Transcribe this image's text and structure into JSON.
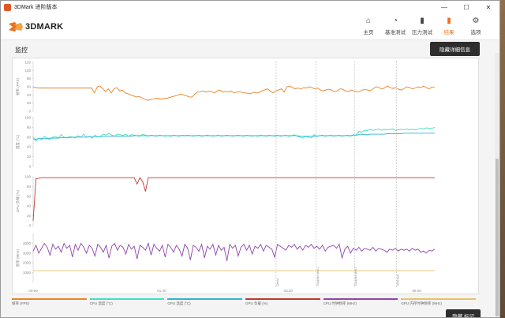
{
  "window": {
    "title": "3DMark 进阶版本",
    "controls": {
      "minimize": "—",
      "maximize": "☐",
      "close": "✕"
    }
  },
  "app": {
    "logo_text": "3DMARK"
  },
  "nav": [
    {
      "label": "主页",
      "icon": "home-icon",
      "glyph": "⌂"
    },
    {
      "label": "基准测试",
      "icon": "gauge-icon",
      "glyph": "◔"
    },
    {
      "label": "压力测试",
      "icon": "bar-chart-icon",
      "glyph": "▮"
    },
    {
      "label": "结果",
      "icon": "results-icon",
      "glyph": "▮",
      "active": true
    },
    {
      "label": "选项",
      "icon": "gear-icon",
      "glyph": "⚙"
    }
  ],
  "section": {
    "title": "监控",
    "detail_button": "隐藏详细信息"
  },
  "hide_button": "隐藏 标记",
  "colors": {
    "fps": "#e8822a",
    "cpu_temp": "#3fe0c0",
    "gpu_temp": "#2bb5d6",
    "gpu_load": "#c0392b",
    "cpu_clock": "#8e44ad",
    "gpu_mem_clock": "#e6c167",
    "accent": "#e8711f"
  },
  "chart_data": {
    "type": "line",
    "x_ticks": [
      "00:00",
      "01:40",
      "03:20",
      "05:00"
    ],
    "markers": [
      "",
      "Demo",
      "Graphics test 1",
      "Graphics test 2",
      "CPU test"
    ],
    "panels": [
      {
        "ylabel": "帧率 (FPS)",
        "ylim": [
          0,
          120
        ],
        "ticks": [
          "120",
          "100",
          "80",
          "60",
          "40",
          "20",
          "0"
        ],
        "series": [
          {
            "color_key": "fps",
            "values": [
              60,
              58,
              57,
              57,
              57,
              57,
              57,
              57,
              57,
              57,
              57,
              57,
              57,
              57,
              57,
              57,
              57,
              57,
              57,
              57,
              57,
              57,
              45,
              60,
              62,
              55,
              48,
              55,
              45,
              55,
              58,
              50,
              52,
              45,
              43,
              40,
              38,
              35,
              36,
              33,
              30,
              27,
              28,
              30,
              32,
              31,
              30,
              31,
              32,
              34,
              36,
              38,
              40,
              42,
              40,
              38,
              35,
              35,
              42,
              47,
              48,
              50,
              47,
              50,
              48,
              45,
              50,
              52,
              47,
              49,
              47,
              50,
              45,
              47,
              48,
              46,
              45,
              44,
              43,
              47,
              45,
              46,
              50,
              52,
              55,
              50,
              45,
              50,
              52,
              55,
              47,
              60,
              62,
              58,
              55,
              57,
              54,
              58,
              57,
              60,
              58,
              55,
              57,
              52,
              50,
              52,
              54,
              52,
              48,
              50,
              55,
              54,
              50,
              48,
              52,
              50,
              48,
              48,
              52,
              53,
              52,
              50,
              56,
              60,
              58,
              55,
              57,
              62,
              58,
              56,
              58,
              54,
              52,
              56,
              60,
              58,
              55,
              57,
              60,
              58,
              62,
              58,
              55,
              60,
              58
            ]
          }
        ]
      },
      {
        "ylabel": "温度 (°C)",
        "ylim": [
          0,
          100
        ],
        "ticks": [
          "100",
          "80",
          "60",
          "40",
          "20",
          "0"
        ],
        "series": [
          {
            "color_key": "cpu_temp",
            "values": [
              60,
              52,
              58,
              55,
              62,
              58,
              55,
              60,
              62,
              58,
              65,
              60,
              58,
              62,
              60,
              58,
              63,
              60,
              66,
              60,
              62,
              58,
              64,
              60,
              62,
              66,
              64,
              68,
              64,
              62,
              66,
              65,
              63,
              66,
              62,
              65,
              64,
              63,
              62,
              66,
              64,
              62,
              64,
              63,
              62,
              64,
              63,
              62,
              63,
              62,
              64,
              63,
              62,
              64,
              63,
              64,
              63,
              62,
              63,
              64,
              62,
              63,
              64,
              63,
              62,
              63,
              64,
              62,
              63,
              64,
              63,
              62,
              63,
              64,
              63,
              62,
              64,
              63,
              62,
              63,
              62,
              64,
              63,
              62,
              64,
              63,
              62,
              64,
              62,
              63,
              64,
              62,
              63,
              65,
              62,
              60,
              58,
              62,
              60,
              58,
              65,
              62,
              63,
              64,
              62,
              63,
              64,
              62,
              63,
              64,
              62,
              63,
              64,
              62,
              65,
              64,
              72,
              70,
              74,
              73,
              76,
              74,
              75,
              77,
              74,
              76,
              75,
              76,
              77,
              74,
              75,
              76,
              75,
              77,
              75,
              76,
              75,
              76,
              78,
              77,
              79,
              78,
              78,
              80
            ]
          },
          {
            "color_key": "gpu_temp",
            "values": [
              56,
              56,
              57,
              57,
              57,
              57,
              58,
              58,
              58,
              58,
              59,
              59,
              59,
              59,
              60,
              60,
              60,
              60,
              60,
              60,
              61,
              61,
              61,
              61,
              61,
              61,
              62,
              62,
              62,
              62,
              62,
              62,
              62,
              62,
              62,
              62,
              63,
              63,
              63,
              63,
              63,
              63,
              63,
              63,
              63,
              63,
              63,
              63,
              63,
              63,
              63,
              63,
              63,
              63,
              63,
              63,
              63,
              63,
              63,
              63,
              63,
              63,
              63,
              63,
              63,
              63,
              63,
              63,
              63,
              63,
              63,
              63,
              63,
              63,
              63,
              63,
              63,
              63,
              63,
              63,
              63,
              63,
              63,
              63,
              63,
              63,
              63,
              63,
              63,
              63,
              63,
              63,
              63,
              63,
              63,
              62,
              62,
              62,
              62,
              62,
              62,
              62,
              63,
              63,
              63,
              63,
              63,
              63,
              63,
              63,
              63,
              63,
              63,
              63,
              64,
              64,
              65,
              65,
              65,
              65,
              66,
              66,
              66,
              66,
              66,
              66,
              67,
              67,
              67,
              67,
              67,
              67,
              68,
              68,
              68,
              68,
              68,
              68,
              68,
              68,
              68,
              68,
              68,
              68
            ]
          }
        ]
      },
      {
        "ylabel": "GPU 负载 (%)",
        "ylim": [
          0,
          100
        ],
        "ticks": [
          "100",
          "80",
          "60",
          "40",
          "20",
          "0"
        ],
        "series": [
          {
            "color_key": "gpu_load",
            "values": [
              10,
              96,
              97,
              98,
              98,
              98,
              98,
              98,
              98,
              98,
              98,
              98,
              98,
              98,
              98,
              98,
              98,
              98,
              98,
              98,
              98,
              98,
              98,
              98,
              98,
              98,
              98,
              98,
              98,
              98,
              98,
              98,
              98,
              98,
              98,
              98,
              98,
              85,
              98,
              90,
              70,
              98,
              98,
              98,
              98,
              98,
              98,
              98,
              98,
              98,
              98,
              98,
              98,
              98,
              98,
              98,
              98,
              98,
              98,
              98,
              98,
              98,
              98,
              98,
              98,
              98,
              98,
              98,
              98,
              98,
              98,
              98,
              98,
              98,
              98,
              98,
              98,
              98,
              98,
              98,
              98,
              98,
              98,
              98,
              98,
              98,
              98,
              98,
              98,
              98,
              98,
              98,
              98,
              98,
              98,
              98,
              98,
              98,
              98,
              98,
              98,
              98,
              98,
              98,
              98,
              98,
              98,
              98,
              98,
              98,
              98,
              98,
              98,
              98,
              98,
              98,
              98,
              98,
              98,
              98,
              98,
              98,
              98,
              98,
              98,
              98,
              98,
              98,
              98,
              98,
              98,
              98,
              98,
              98,
              98,
              98,
              98,
              98,
              98,
              98,
              98,
              98,
              98,
              98
            ]
          }
        ]
      },
      {
        "ylabel": "频率 (MHz)",
        "ylim": [
          0,
          5000
        ],
        "ticks": [
          "4000",
          "3000",
          "2000",
          "1000"
        ],
        "series": [
          {
            "color_key": "cpu_clock",
            "values": [
              3200,
              3800,
              3000,
              3500,
              4000,
              3600,
              2800,
              3900,
              3400,
              3700,
              3100,
              4000,
              3500,
              3800,
              2600,
              3900,
              3300,
              4000,
              3600,
              3000,
              3800,
              3500,
              2700,
              3900,
              3600,
              3100,
              3800,
              2500,
              3700,
              4000,
              3300,
              3800,
              3600,
              2900,
              3900,
              3400,
              3700,
              2400,
              3800,
              3600,
              3300,
              4000,
              2800,
              3900,
              3500,
              3200,
              3800,
              2600,
              3900,
              3600,
              3100,
              3800,
              3400,
              2700,
              3900,
              3500,
              2300,
              3800,
              3600,
              3200,
              3900,
              2500,
              3700,
              3400,
              3900,
              2800,
              3800,
              3300,
              3600,
              2200,
              3900,
              3500,
              3800,
              2700,
              3600,
              3900,
              3300,
              3800,
              2900,
              3700,
              3500,
              3900,
              3200,
              3800,
              3600,
              3400,
              2600,
              3900,
              3700,
              3500,
              3300,
              3800,
              3600,
              3900,
              3400,
              3700,
              3300,
              3800,
              3600,
              3900,
              3500,
              3700,
              3400,
              3800,
              3200,
              3600,
              3700,
              3800,
              3500,
              3900,
              2500,
              3400,
              3700,
              3000,
              3500,
              3300,
              3600,
              3200,
              3500,
              3400,
              3300,
              3600,
              3200,
              3500,
              3400,
              3300,
              3100,
              3400,
              3300,
              3500,
              3200,
              3400,
              3300,
              3400,
              3200,
              3500,
              3300,
              3400,
              3100,
              3200,
              3000,
              3300,
              3200,
              3400
            ]
          },
          {
            "color_key": "gpu_mem_clock",
            "values": [
              1200,
              1200,
              1200,
              1200,
              1200,
              1200,
              1200,
              1200,
              1200,
              1200,
              1200,
              1200,
              1200,
              1200,
              1200,
              1200,
              1200,
              1200,
              1200,
              1200
            ]
          }
        ]
      }
    ],
    "legend": [
      {
        "label": "帧率 (FPS)",
        "color_key": "fps"
      },
      {
        "label": "CPU 温度 (°C)",
        "color_key": "cpu_temp"
      },
      {
        "label": "GPU 温度 (°C)",
        "color_key": "gpu_temp"
      },
      {
        "label": "GPU 负载 (%)",
        "color_key": "gpu_load"
      },
      {
        "label": "CPU 时钟频率 (MHz)",
        "color_key": "cpu_clock"
      },
      {
        "label": "GPU 内存时钟频率 (MHz)",
        "color_key": "gpu_mem_clock"
      }
    ]
  }
}
